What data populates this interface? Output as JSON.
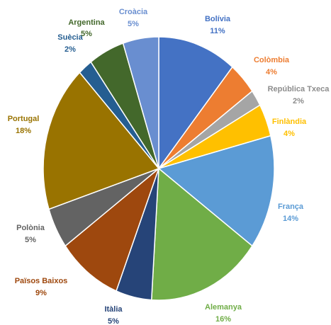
{
  "chart_data": {
    "type": "pie",
    "categories": [
      "Bolívia",
      "Colòmbia",
      "República Txeca",
      "Finlàndia",
      "França",
      "Alemanya",
      "Itàlia",
      "Països Baixos",
      "Polònia",
      "Portugal",
      "Suècia",
      "Argentina",
      "Croàcia"
    ],
    "values": [
      11,
      4,
      2,
      4,
      14,
      16,
      5,
      9,
      5,
      18,
      2,
      5,
      5
    ],
    "value_labels": [
      "11%",
      "4%",
      "2%",
      "4%",
      "14%",
      "16%",
      "5%",
      "9%",
      "5%",
      "18%",
      "2%",
      "5%",
      "5%"
    ],
    "colors": [
      "#4472c4",
      "#ed7d31",
      "#a5a5a5",
      "#ffc000",
      "#5b9bd5",
      "#70ad47",
      "#264478",
      "#9e480e",
      "#636363",
      "#997300",
      "#255e91",
      "#43682b",
      "#698ed0"
    ]
  }
}
